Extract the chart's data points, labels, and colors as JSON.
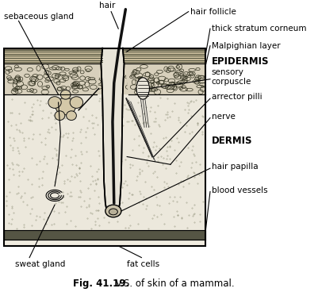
{
  "title_bold": "Fig. 41.19.",
  "title_rest": " V.S. of skin of a mammal.",
  "bg_color": "#ffffff",
  "labels": {
    "sebaceous_gland": "sebaceous gland",
    "hair": "hair",
    "hair_follicle": "hair follicle",
    "thick_stratum": "thick stratum corneum",
    "malpighian": "Malpighian layer",
    "epidermis": "EPIDERMIS",
    "sensory": "sensory\ncorpuscle",
    "arrector": "arrector pilli",
    "nerve": "nerve",
    "dermis": "DERMIS",
    "hair_papilla": "hair papilla",
    "blood_vessels": "blood vessels",
    "sweat_gland": "sweat gland",
    "fat_cells": "fat cells"
  }
}
